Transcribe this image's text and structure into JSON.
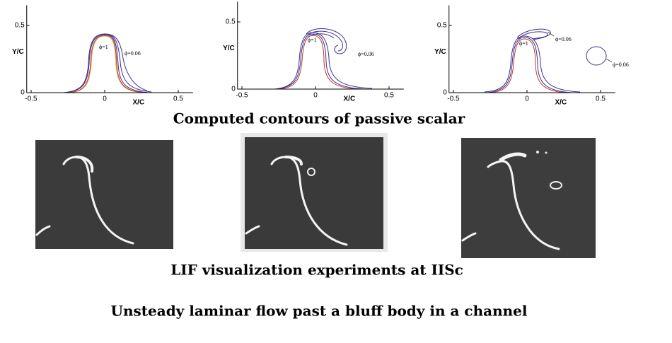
{
  "plots": [
    {
      "x_label": "X/C",
      "y_label": "Y/C",
      "xlim": [
        -0.53,
        0.6
      ],
      "ylim": [
        0,
        0.65
      ],
      "xticks": [
        -0.5,
        0,
        0.5
      ],
      "yticks": [
        0,
        0.5
      ],
      "annotations": [
        "ϕ=1",
        "ϕ=0.06"
      ]
    },
    {
      "x_label": "X/C",
      "y_label": "Y/C",
      "xlim": [
        -0.53,
        0.6
      ],
      "ylim": [
        0,
        0.65
      ],
      "xticks": [
        -0.5,
        0,
        0.5
      ],
      "yticks": [
        0,
        0.5
      ],
      "annotations": [
        "ϕ=1",
        "ϕ=0.06"
      ]
    },
    {
      "x_label": "X/C",
      "y_label": "Y/C",
      "xlim": [
        -0.53,
        0.6
      ],
      "ylim": [
        0,
        0.65
      ],
      "xticks": [
        -0.5,
        0,
        0.5
      ],
      "yticks": [
        0,
        0.5
      ],
      "annotations": [
        "ϕ=1",
        "ϕ=0.06",
        "ϕ=0.06"
      ]
    }
  ],
  "captions": [
    "Computed contours of passive scalar",
    "LIF visualization experiments at IISc",
    "Unsteady laminar flow past a bluff body in a channel"
  ]
}
